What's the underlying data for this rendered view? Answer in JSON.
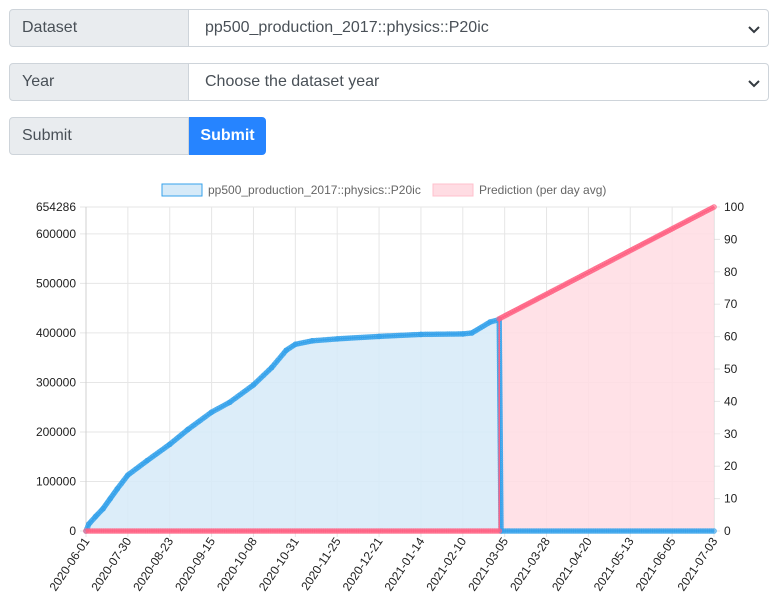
{
  "form": {
    "dataset": {
      "label": "Dataset",
      "value": "pp500_production_2017::physics::P20ic"
    },
    "year": {
      "label": "Year",
      "placeholder": "Choose the dataset year"
    },
    "submit": {
      "label": "Submit",
      "button_label": "Submit"
    }
  },
  "chart_data": {
    "type": "line",
    "title": "",
    "xlabel": "",
    "ylabel": "",
    "legend_position": "top",
    "grid": true,
    "x_ticks": [
      "2020-06-01",
      "2020-07-30",
      "2020-08-23",
      "2020-09-15",
      "2020-10-08",
      "2020-10-31",
      "2020-11-25",
      "2020-12-21",
      "2021-01-14",
      "2021-02-10",
      "2021-03-05",
      "2021-03-28",
      "2021-04-20",
      "2021-05-13",
      "2021-06-05",
      "2021-07-03"
    ],
    "y_left": {
      "ticks": [
        0,
        100000,
        200000,
        300000,
        400000,
        500000,
        600000,
        654286
      ],
      "range": [
        0,
        654286
      ]
    },
    "y_right": {
      "ticks": [
        0,
        10,
        20,
        30,
        40,
        50,
        60,
        70,
        80,
        90,
        100
      ],
      "range": [
        0,
        100
      ]
    },
    "series": [
      {
        "name": "pp500_production_2017::physics::P20ic",
        "axis": "left",
        "color": "#36a2eb",
        "fill": "#d6eaf8",
        "points": [
          [
            "2020-06-01",
            0
          ],
          [
            "2020-06-05",
            14000
          ],
          [
            "2020-06-15",
            30000
          ],
          [
            "2020-06-25",
            45000
          ],
          [
            "2020-07-05",
            65000
          ],
          [
            "2020-07-15",
            85000
          ],
          [
            "2020-07-30",
            113000
          ],
          [
            "2020-08-10",
            142000
          ],
          [
            "2020-08-23",
            175000
          ],
          [
            "2020-09-02",
            205000
          ],
          [
            "2020-09-15",
            240000
          ],
          [
            "2020-09-25",
            260000
          ],
          [
            "2020-10-08",
            295000
          ],
          [
            "2020-10-18",
            330000
          ],
          [
            "2020-10-26",
            365000
          ],
          [
            "2020-10-31",
            377000
          ],
          [
            "2020-11-10",
            384000
          ],
          [
            "2020-11-25",
            388000
          ],
          [
            "2020-12-21",
            393000
          ],
          [
            "2021-01-14",
            397000
          ],
          [
            "2021-02-10",
            398000
          ],
          [
            "2021-02-15",
            400000
          ],
          [
            "2021-02-25",
            422000
          ],
          [
            "2021-03-02",
            427000
          ],
          [
            "2021-03-03",
            0
          ],
          [
            "2021-07-03",
            0
          ]
        ]
      },
      {
        "name": "Prediction (per day avg)",
        "axis": "right",
        "color": "#ff6384",
        "fill": "#ffdce3",
        "points": [
          [
            "2020-06-01",
            0
          ],
          [
            "2021-03-02",
            0
          ],
          [
            "2021-03-02",
            65.5
          ],
          [
            "2021-07-03",
            100
          ]
        ]
      }
    ]
  }
}
